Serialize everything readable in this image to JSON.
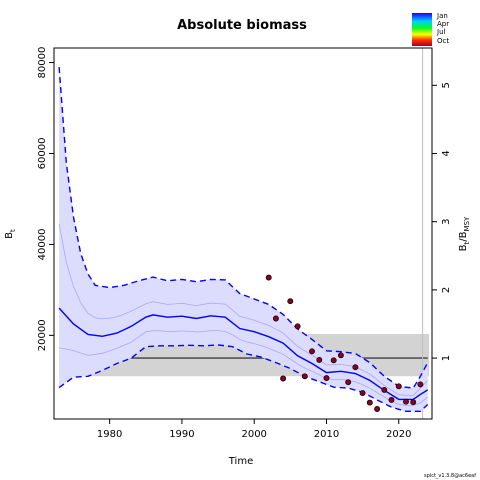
{
  "chart_data": {
    "type": "line",
    "title": "Absolute biomass",
    "xlabel": "Time",
    "ylabel": "B",
    "ylabel_sub": "t",
    "y2label": "B",
    "y2label_sub1": "t",
    "y2label_sep": "/B",
    "y2label_sub2": "MSY",
    "xlim": [
      1972.3,
      2024.6
    ],
    "ylim": [
      1600,
      83200
    ],
    "y2lim": [
      0.1067,
      5.547
    ],
    "bmsy": 15000,
    "bmsy_band": [
      11000,
      20300
    ],
    "vline_x": 2023.3,
    "x_ticks": [
      1980,
      1990,
      2000,
      2010,
      2020
    ],
    "y_ticks": [
      20000,
      40000,
      60000,
      80000
    ],
    "y2_ticks": [
      1,
      2,
      3,
      4,
      5
    ],
    "legend": {
      "position": "top-right",
      "labels": [
        "Jan",
        "Apr",
        "Jul",
        "Oct"
      ]
    },
    "series": [
      {
        "name": "estimate",
        "style": "solid",
        "color": "#0000ff",
        "x": [
          1973,
          1975,
          1977,
          1979,
          1981,
          1983,
          1985,
          1986,
          1988,
          1990,
          1992,
          1994,
          1996,
          1998,
          2000,
          2002,
          2004,
          2006,
          2008,
          2010,
          2012,
          2014,
          2016,
          2018,
          2020,
          2022,
          2023,
          2024
        ],
        "values": [
          26000,
          22500,
          20200,
          19800,
          20500,
          22000,
          24000,
          24500,
          24000,
          24200,
          23700,
          24300,
          24000,
          21500,
          20800,
          19700,
          18300,
          15500,
          13800,
          11800,
          12100,
          11600,
          10100,
          7900,
          5900,
          5900,
          7000,
          8000
        ]
      },
      {
        "name": "upper",
        "style": "dashed",
        "color": "#0000ff",
        "x": [
          1973,
          1974,
          1975,
          1976,
          1977,
          1978,
          1980,
          1982,
          1984,
          1986,
          1988,
          1990,
          1992,
          1994,
          1996,
          1998,
          2000,
          2002,
          2004,
          2006,
          2008,
          2010,
          2012,
          2014,
          2016,
          2018,
          2020,
          2022,
          2023,
          2024
        ],
        "values": [
          79000,
          58000,
          46000,
          38000,
          33500,
          31000,
          30500,
          31000,
          32000,
          32800,
          32000,
          32300,
          31800,
          32300,
          32200,
          29200,
          28000,
          26800,
          24600,
          21400,
          19100,
          16600,
          16400,
          16000,
          14000,
          11000,
          8800,
          8400,
          11000,
          14000
        ]
      },
      {
        "name": "lower",
        "style": "dashed",
        "color": "#0000ff",
        "x": [
          1973,
          1975,
          1977,
          1979,
          1981,
          1983,
          1985,
          1987,
          1989,
          1991,
          1993,
          1995,
          1997,
          1999,
          2001,
          2003,
          2005,
          2007,
          2009,
          2011,
          2013,
          2015,
          2017,
          2019,
          2021,
          2023,
          2024
        ],
        "values": [
          8500,
          10800,
          11000,
          12300,
          13800,
          15000,
          17500,
          17700,
          17700,
          17800,
          17700,
          17900,
          17500,
          15900,
          15200,
          14000,
          12700,
          11000,
          9800,
          8600,
          8400,
          7500,
          5800,
          4200,
          3300,
          3300,
          4800
        ]
      },
      {
        "name": "observations",
        "style": "points",
        "color": "#8b0025",
        "x": [
          2002,
          2003,
          2004,
          2005,
          2006,
          2007,
          2008,
          2009,
          2010,
          2011,
          2012,
          2013,
          2014,
          2015,
          2016,
          2017,
          2018,
          2019,
          2020,
          2021,
          2022,
          2023
        ],
        "values": [
          32700,
          23700,
          10500,
          27500,
          22000,
          11000,
          16500,
          14600,
          10600,
          14500,
          15600,
          9700,
          13000,
          7300,
          5200,
          3800,
          8000,
          5800,
          8800,
          5400,
          5300,
          9200
        ]
      }
    ],
    "colors": {
      "line": "#0000ff",
      "ci_fill": "#dcdcff",
      "band": "#d3d3d3",
      "bmsy_line": "#555555",
      "vline": "#bebebe",
      "points": "#8b0025"
    }
  },
  "footer": {
    "version": "spict_v1.3.8@ac6eaf"
  }
}
